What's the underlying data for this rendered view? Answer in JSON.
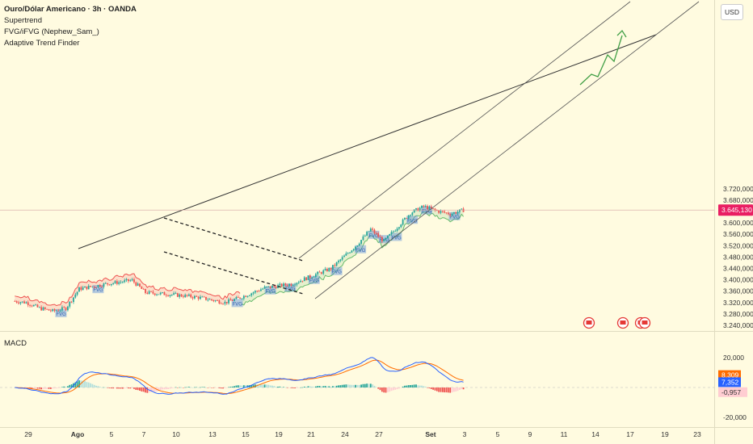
{
  "header": {
    "title": "Ouro/Dólar Americano · 3h · OANDA",
    "indicators": [
      "Supertrend",
      "FVG/iFVG (Nephew_Sam_)",
      "Adaptive Trend Finder"
    ],
    "currency": "USD"
  },
  "colors": {
    "background": "#fffbe0",
    "up_candle": "#26a69a",
    "down_candle": "#ef5350",
    "supertrend_up": "#66bb6a",
    "supertrend_down": "#ef5350",
    "fvg": "#5b8fd9",
    "price_tag": "#e91e63",
    "macd_line": "#2962ff",
    "signal_line": "#ff6d00",
    "projection": "#43a047"
  },
  "price_axis": {
    "ticks": [
      "3.720,000",
      "3.680,000",
      "3.600,000",
      "3.560,000",
      "3.520,000",
      "3.480,000",
      "3.440,000",
      "3.400,000",
      "3.360,000",
      "3.320,000",
      "3.280,000",
      "3.240,000"
    ],
    "tick_values": [
      3720,
      3680,
      3600,
      3560,
      3520,
      3480,
      3440,
      3400,
      3360,
      3320,
      3280,
      3240
    ],
    "current_price_label": "3.645,130",
    "current_price": 3645.13
  },
  "macd_panel": {
    "label": "MACD",
    "ticks": [
      "20,000",
      "-20,000"
    ],
    "tick_values": [
      20,
      -20
    ],
    "labels": {
      "signal": "8,309",
      "macd": "7,352",
      "hist": "-0,957"
    },
    "signal_value": 8.309,
    "macd_value": 7.352,
    "hist_value": -0.957
  },
  "x_axis": {
    "labels": [
      "29",
      "Ago",
      "5",
      "7",
      "10",
      "13",
      "15",
      "19",
      "21",
      "24",
      "27",
      "Set",
      "3",
      "5",
      "9",
      "11",
      "14",
      "17",
      "19",
      "23"
    ]
  },
  "fvg_label": "FVG",
  "chart_data": {
    "type": "candlestick",
    "title": "Ouro/Dólar Americano · 3h · OANDA",
    "y_unit": "USD",
    "ylim": [
      3220,
      3760
    ],
    "anchors": {
      "x": [
        "28 Jul",
        "29 Jul",
        "30 Jul",
        "31 Jul",
        "1 Ago",
        "4 Ago",
        "6 Ago",
        "8 Ago",
        "11 Ago",
        "13 Ago",
        "15 Ago",
        "19 Ago",
        "20 Ago",
        "22 Ago",
        "26 Ago",
        "29 Ago",
        "2 Set",
        "3 Set",
        "4 Set",
        "5 Set",
        "8 Set",
        "9 Set",
        "10 Set",
        "11 Set",
        "12 Set"
      ],
      "close": [
        3325,
        3320,
        3300,
        3290,
        3300,
        3368,
        3385,
        3398,
        3355,
        3348,
        3338,
        3320,
        3335,
        3372,
        3385,
        3440,
        3525,
        3578,
        3535,
        3585,
        3635,
        3658,
        3642,
        3632,
        3645
      ]
    },
    "supertrend": "up since 20 Ago",
    "fvg_zones": 14,
    "macd": {
      "macd": 7.352,
      "signal": 8.309,
      "histogram": -0.957,
      "ylim": [
        -20,
        20
      ]
    },
    "grid": false
  }
}
